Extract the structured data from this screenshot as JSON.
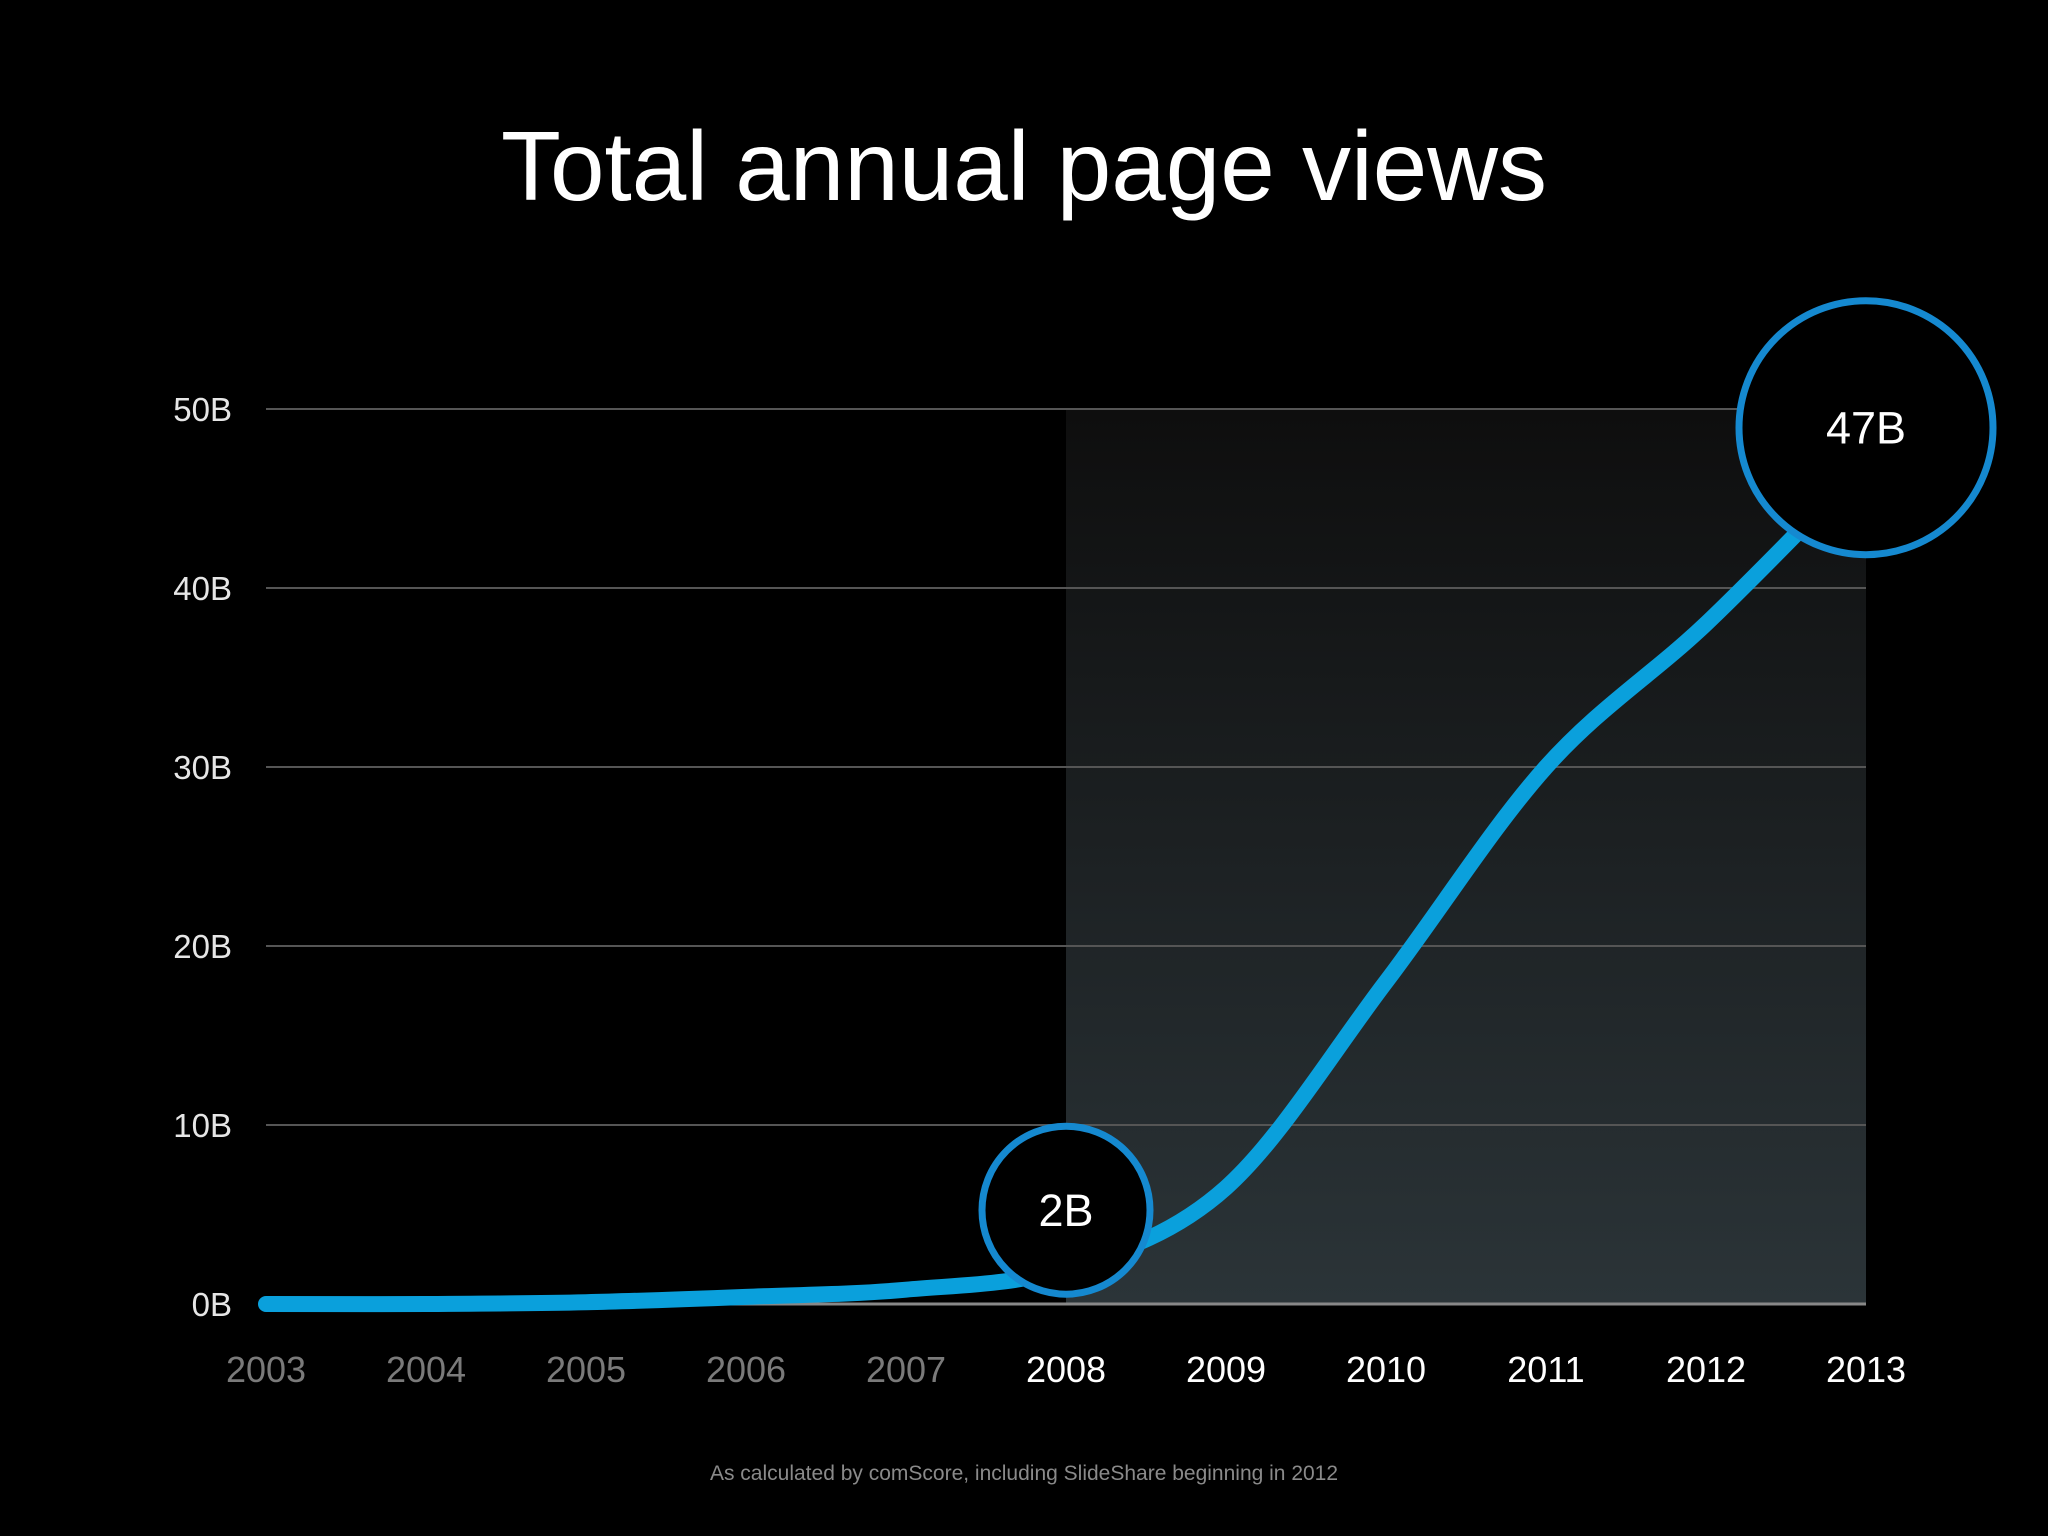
{
  "slide": {
    "title": "Total annual page views",
    "footnote": "As calculated by comScore, including SlideShare beginning in 2012"
  },
  "colors": {
    "background": "#000000",
    "line": "#0aa0dc",
    "callout_ring": "#1589d0",
    "highlight_from": "#0e0e0e",
    "highlight_to": "#2b3438",
    "grid": "#555555",
    "dim_tick": "#7a7a7a",
    "bright_tick": "#ffffff"
  },
  "chart_data": {
    "type": "line",
    "title": "Total annual page views",
    "x": [
      "2003",
      "2004",
      "2005",
      "2006",
      "2007",
      "2008",
      "2009",
      "2010",
      "2011",
      "2012",
      "2013"
    ],
    "series": [
      {
        "values": [
          0.0,
          0.0,
          0.1,
          0.4,
          0.8,
          2,
          6.5,
          18,
          30,
          38,
          47
        ]
      }
    ],
    "yticks": [
      "0B",
      "10B",
      "20B",
      "30B",
      "40B",
      "50B"
    ],
    "ytick_values": [
      0,
      10,
      20,
      30,
      40,
      50
    ],
    "ylim": [
      0,
      50
    ],
    "grid": true,
    "highlight_range": [
      "2008",
      "2013"
    ],
    "dimmed_years": [
      "2003",
      "2004",
      "2005",
      "2006",
      "2007"
    ],
    "annotations": [
      {
        "x": "2008",
        "y": 2,
        "label": "2B"
      },
      {
        "x": "2013",
        "y": 47,
        "label": "47B"
      }
    ]
  }
}
